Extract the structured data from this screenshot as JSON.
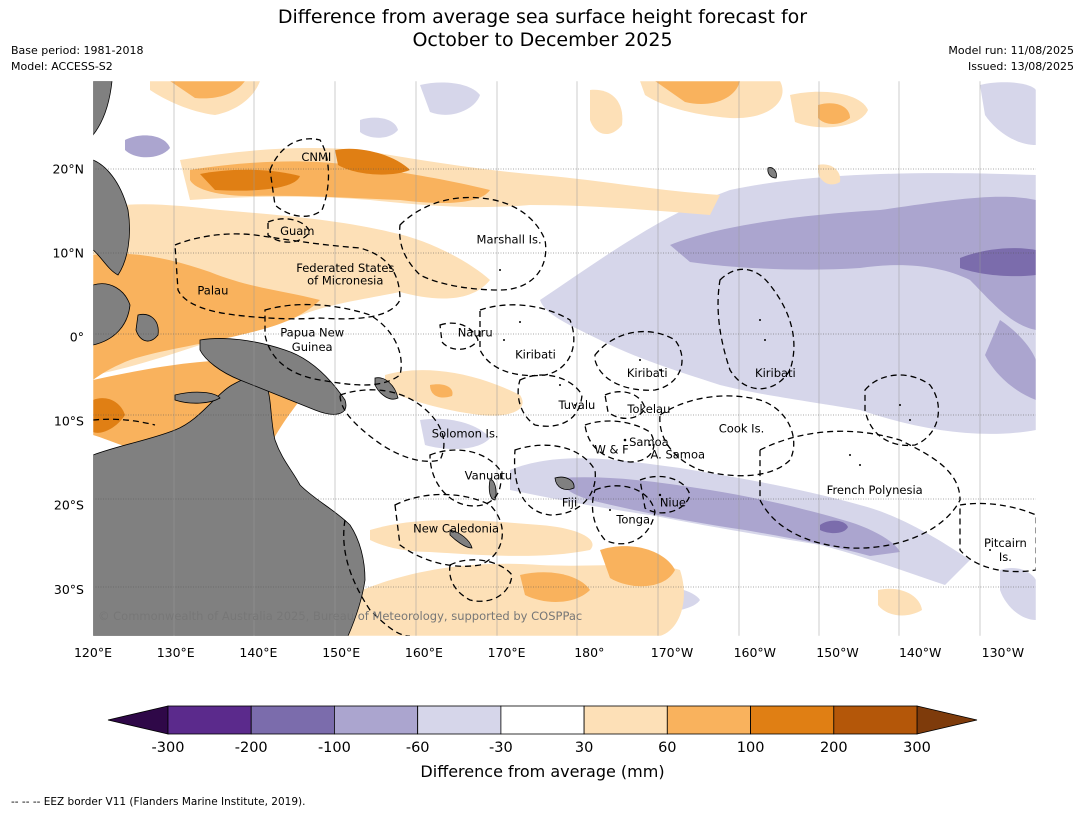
{
  "title_line1": "Difference from average sea surface height forecast for",
  "title_line2": "October to December 2025",
  "meta": {
    "base_period": "Base period: 1981-2018",
    "model": "Model: ACCESS-S2",
    "model_run": "Model run: 11/08/2025",
    "issued": "Issued: 13/08/2025"
  },
  "axes": {
    "lon_ticks": [
      "120°E",
      "130°E",
      "140°E",
      "150°E",
      "160°E",
      "170°E",
      "180°",
      "170°W",
      "160°W",
      "150°W",
      "140°W",
      "130°W"
    ],
    "lat_ticks": [
      "20°N",
      "10°N",
      "0°",
      "10°S",
      "20°S",
      "30°S"
    ]
  },
  "places": [
    {
      "name": "CNMI",
      "lon": 147,
      "lat": 21
    },
    {
      "name": "Guam",
      "lon": 144.7,
      "lat": 12.2
    },
    {
      "name": "Marshall Is.",
      "lon": 170.3,
      "lat": 11.2
    },
    {
      "name": "Federated States",
      "lon": 150.5,
      "lat": 7.8
    },
    {
      "name": "of Micronesia",
      "lon": 150.5,
      "lat": 6.3
    },
    {
      "name": "Palau",
      "lon": 134.5,
      "lat": 5.1
    },
    {
      "name": "Papua New",
      "lon": 146.5,
      "lat": 0.1
    },
    {
      "name": "Guinea",
      "lon": 146.5,
      "lat": -1.6
    },
    {
      "name": "Nauru",
      "lon": 166.2,
      "lat": 0.1
    },
    {
      "name": "Kiribati",
      "lon": 173.5,
      "lat": -2.5
    },
    {
      "name": "Kiribati",
      "lon": -173,
      "lat": -4.7
    },
    {
      "name": "Kiribati",
      "lon": -157.5,
      "lat": -4.7
    },
    {
      "name": "Tuvalu",
      "lon": 178.5,
      "lat": -8.5
    },
    {
      "name": "Tokelau",
      "lon": -172.8,
      "lat": -9
    },
    {
      "name": "Cook Is.",
      "lon": -161.6,
      "lat": -11.3
    },
    {
      "name": "Solomon Is.",
      "lon": 165,
      "lat": -11.9
    },
    {
      "name": "Samoa",
      "lon": -172.8,
      "lat": -12.9
    },
    {
      "name": "W & F",
      "lon": -177.3,
      "lat": -13.8
    },
    {
      "name": "A. Samoa",
      "lon": -169.3,
      "lat": -14.4
    },
    {
      "name": "Vanuatu",
      "lon": 167.8,
      "lat": -16.9
    },
    {
      "name": "Fiji",
      "lon": 177.6,
      "lat": -20.1
    },
    {
      "name": "Niue",
      "lon": -169.9,
      "lat": -20.1
    },
    {
      "name": "French Polynesia",
      "lon": -145.5,
      "lat": -18.6
    },
    {
      "name": "Tonga",
      "lon": -174.7,
      "lat": -22.1
    },
    {
      "name": "New Caledonia",
      "lon": 163.9,
      "lat": -23.2
    },
    {
      "name": "Pitcairn",
      "lon": -129.7,
      "lat": -24.9
    },
    {
      "name": "Is.",
      "lon": -129.7,
      "lat": -26.6
    }
  ],
  "copyright": "© Commonwealth of Australia 2025, Bureau of Meteorology, supported by COSPPac",
  "colorbar": {
    "ticks": [
      "-300",
      "-200",
      "-100",
      "-60",
      "-30",
      "30",
      "60",
      "100",
      "200",
      "300"
    ],
    "colors": [
      "#5b2a8c",
      "#7b6cac",
      "#aba5cf",
      "#d6d6ea",
      "#ffffff",
      "#fde0b7",
      "#f9b25d",
      "#e07f14",
      "#b45709"
    ],
    "under_color": "#2f0848",
    "over_color": "#7e3b0b",
    "land_color": "#808080",
    "label": "Difference from average (mm)"
  },
  "eez_note": "--  --  -- EEZ border V11 (Flanders Marine Institute, 2019)."
}
